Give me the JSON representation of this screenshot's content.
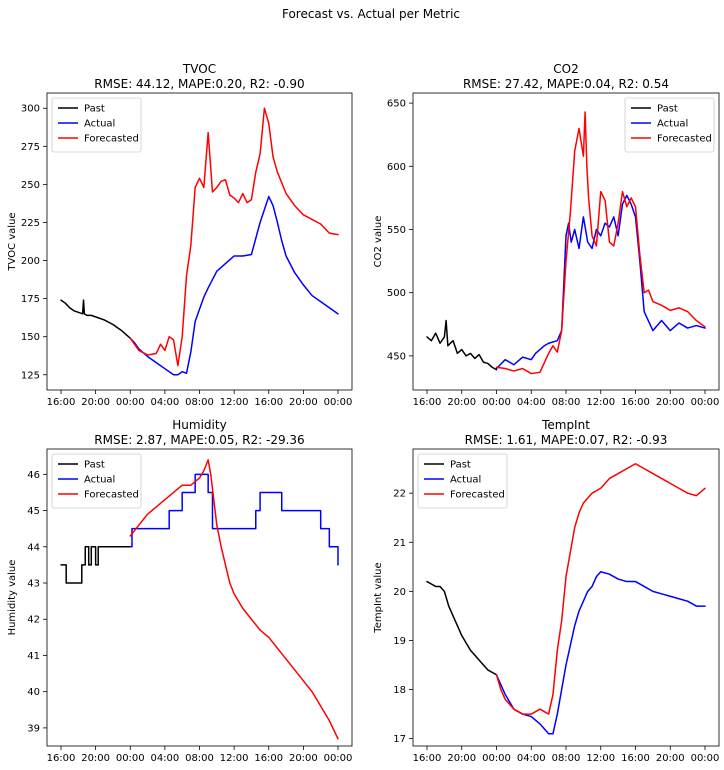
{
  "figure": {
    "suptitle": "Forecast vs. Actual per Metric"
  },
  "colors": {
    "past": "#000000",
    "actual": "#0000ff",
    "forecasted": "#ff0000"
  },
  "chart_data": [
    {
      "type": "line",
      "title": "TVOC",
      "subtitle": "RMSE: 44.12, MAPE:0.20, R2: -0.90",
      "ylabel": "TVOC value",
      "xlabel": "",
      "xlim": [
        0,
        32
      ],
      "ylim": [
        115,
        310
      ],
      "x_ticks": [
        0,
        4,
        8,
        12,
        16,
        20,
        24,
        28,
        32
      ],
      "x_tick_labels": [
        "16:00",
        "20:00",
        "00:00",
        "04:00",
        "08:00",
        "12:00",
        "16:00",
        "20:00",
        "00:00"
      ],
      "y_ticks": [
        125,
        150,
        175,
        200,
        225,
        250,
        275,
        300
      ],
      "y_tick_labels": [
        "125",
        "150",
        "175",
        "200",
        "225",
        "250",
        "275",
        "300"
      ],
      "legend": {
        "position": "top-left",
        "entries": [
          "Past",
          "Actual",
          "Forecasted"
        ]
      },
      "series": [
        {
          "name": "Past",
          "color": "#000000",
          "x": [
            0,
            0.5,
            1,
            1.5,
            2,
            2.5,
            2.6,
            2.7,
            3,
            3.5,
            4,
            5,
            6,
            7,
            8
          ],
          "y": [
            174,
            172,
            169,
            167,
            166,
            165,
            174,
            165,
            164,
            164,
            163,
            161,
            158,
            154,
            149
          ]
        },
        {
          "name": "Actual",
          "color": "#0000ff",
          "x": [
            8,
            8.5,
            9,
            10,
            11,
            12,
            13,
            13.5,
            14,
            14.5,
            15,
            15.5,
            16,
            16.5,
            17,
            18,
            19,
            20,
            21,
            22,
            23,
            24,
            24.5,
            25,
            25.5,
            26,
            27,
            28,
            29,
            30,
            31,
            32
          ],
          "y": [
            149,
            146,
            142,
            137,
            133,
            129,
            125,
            125,
            127,
            126,
            140,
            160,
            168,
            176,
            182,
            193,
            198,
            203,
            203,
            204,
            225,
            242,
            236,
            225,
            213,
            203,
            192,
            184,
            177,
            173,
            169,
            165
          ]
        },
        {
          "name": "Forecasted",
          "color": "#ff0000",
          "x": [
            8,
            8.5,
            9,
            10,
            11,
            11.5,
            12,
            12.5,
            13,
            13.5,
            14,
            14.5,
            15,
            15.5,
            16,
            16.5,
            17,
            17.5,
            18,
            18.5,
            19,
            19.5,
            20,
            20.5,
            21,
            21.5,
            22,
            22.5,
            23,
            23.5,
            24,
            24.5,
            25,
            26,
            27,
            28,
            29,
            30,
            31,
            32
          ],
          "y": [
            149,
            145,
            141,
            138,
            139,
            145,
            141,
            150,
            148,
            131,
            150,
            190,
            210,
            248,
            254,
            248,
            284,
            245,
            248,
            252,
            253,
            243,
            241,
            238,
            244,
            238,
            240,
            258,
            270,
            300,
            290,
            268,
            258,
            244,
            236,
            230,
            227,
            224,
            218,
            217
          ]
        }
      ]
    },
    {
      "type": "line",
      "title": "CO2",
      "subtitle": "RMSE: 27.42, MAPE:0.04, R2: 0.54",
      "ylabel": "CO2 value",
      "xlabel": "",
      "xlim": [
        0,
        32
      ],
      "ylim": [
        423,
        658
      ],
      "x_ticks": [
        0,
        4,
        8,
        12,
        16,
        20,
        24,
        28,
        32
      ],
      "x_tick_labels": [
        "16:00",
        "20:00",
        "00:00",
        "04:00",
        "08:00",
        "12:00",
        "16:00",
        "20:00",
        "00:00"
      ],
      "y_ticks": [
        450,
        500,
        550,
        600,
        650
      ],
      "y_tick_labels": [
        "450",
        "500",
        "550",
        "600",
        "650"
      ],
      "legend": {
        "position": "top-right",
        "entries": [
          "Past",
          "Actual",
          "Forecasted"
        ]
      },
      "series": [
        {
          "name": "Past",
          "color": "#000000",
          "x": [
            0,
            0.5,
            1,
            1.5,
            2,
            2.2,
            2.4,
            3,
            3.5,
            4,
            4.5,
            5,
            5.5,
            6,
            6.5,
            7,
            7.5,
            8
          ],
          "y": [
            465,
            462,
            468,
            460,
            465,
            478,
            458,
            462,
            452,
            455,
            450,
            452,
            448,
            451,
            445,
            444,
            441,
            439
          ]
        },
        {
          "name": "Actual",
          "color": "#0000ff",
          "x": [
            8,
            9,
            10,
            11,
            12,
            12.5,
            13,
            13.5,
            14,
            15,
            15.5,
            16,
            16.3,
            16.6,
            17,
            17.5,
            18,
            18.5,
            19,
            19.5,
            20,
            20.5,
            21,
            21.5,
            22,
            22.5,
            23,
            23.5,
            24,
            24.5,
            25,
            26,
            27,
            28,
            29,
            30,
            31,
            32
          ],
          "y": [
            440,
            447,
            443,
            449,
            447,
            452,
            455,
            458,
            460,
            462,
            470,
            545,
            555,
            540,
            550,
            535,
            560,
            540,
            535,
            550,
            545,
            555,
            552,
            560,
            545,
            570,
            577,
            570,
            560,
            525,
            485,
            470,
            478,
            470,
            476,
            472,
            474,
            472
          ]
        },
        {
          "name": "Forecasted",
          "color": "#ff0000",
          "x": [
            8,
            9,
            10,
            11,
            12,
            13,
            14,
            14.5,
            15,
            15.5,
            16,
            16.5,
            17,
            17.5,
            18,
            18.2,
            18.4,
            18.6,
            19,
            19.5,
            20,
            20.5,
            21,
            21.5,
            22,
            22.5,
            23,
            23.5,
            24,
            24.5,
            25,
            25.5,
            26,
            27,
            28,
            29,
            30,
            31,
            32
          ],
          "y": [
            441,
            440,
            438,
            440,
            436,
            437,
            452,
            458,
            453,
            470,
            525,
            563,
            612,
            630,
            608,
            643,
            600,
            575,
            545,
            537,
            580,
            573,
            540,
            537,
            555,
            580,
            568,
            575,
            568,
            530,
            500,
            502,
            493,
            490,
            486,
            488,
            485,
            478,
            473
          ]
        }
      ]
    },
    {
      "type": "line",
      "title": "Humidity",
      "subtitle": "RMSE: 2.87, MAPE:0.05, R2: -29.36",
      "ylabel": "Humidity value",
      "xlabel": "",
      "xlim": [
        0,
        32
      ],
      "ylim": [
        38.5,
        46.7
      ],
      "x_ticks": [
        0,
        4,
        8,
        12,
        16,
        20,
        24,
        28,
        32
      ],
      "x_tick_labels": [
        "16:00",
        "20:00",
        "00:00",
        "04:00",
        "08:00",
        "12:00",
        "16:00",
        "20:00",
        "00:00"
      ],
      "y_ticks": [
        39,
        40,
        41,
        42,
        43,
        44,
        45,
        46
      ],
      "y_tick_labels": [
        "39",
        "40",
        "41",
        "42",
        "43",
        "44",
        "45",
        "46"
      ],
      "legend": {
        "position": "top-left",
        "entries": [
          "Past",
          "Actual",
          "Forecasted"
        ]
      },
      "series": [
        {
          "name": "Past",
          "color": "#000000",
          "x": [
            0,
            0.6,
            0.6,
            2.4,
            2.4,
            2.8,
            2.8,
            3.2,
            3.2,
            3.5,
            3.5,
            4,
            4,
            4.3,
            4.3,
            8
          ],
          "y": [
            43.5,
            43.5,
            43.0,
            43.0,
            43.5,
            43.5,
            44.0,
            44.0,
            43.5,
            43.5,
            44.0,
            44.0,
            43.5,
            43.5,
            44.0,
            44.0
          ]
        },
        {
          "name": "Actual",
          "color": "#0000ff",
          "x": [
            8,
            8.2,
            8.2,
            8.5,
            8.5,
            12.5,
            12.5,
            14,
            14,
            15.5,
            15.5,
            17,
            17,
            17.5,
            17.5,
            22.5,
            22.5,
            23,
            23,
            24,
            24,
            25.5,
            25.5,
            26,
            26,
            27,
            27,
            30,
            30,
            31,
            31,
            32,
            32
          ],
          "y": [
            44.0,
            44.0,
            44.5,
            44.5,
            44.5,
            44.5,
            45.0,
            45.0,
            45.5,
            45.5,
            46.0,
            46.0,
            45.5,
            45.5,
            44.5,
            44.5,
            45.0,
            45.0,
            45.5,
            45.5,
            45.5,
            45.5,
            45.0,
            45.0,
            45.0,
            45.0,
            45.0,
            45.0,
            44.5,
            44.5,
            44.0,
            44.0,
            43.5
          ]
        },
        {
          "name": "Forecasted",
          "color": "#ff0000",
          "x": [
            8,
            9,
            10,
            11,
            12,
            13,
            14,
            15,
            16,
            16.5,
            17,
            17.3,
            17.6,
            18,
            18.5,
            19,
            19.5,
            20,
            21,
            22,
            23,
            24,
            25,
            26,
            27,
            28,
            29,
            30,
            31,
            32
          ],
          "y": [
            44.3,
            44.6,
            44.9,
            45.1,
            45.3,
            45.5,
            45.7,
            45.7,
            45.9,
            46.1,
            46.4,
            46.0,
            45.4,
            44.6,
            44.0,
            43.5,
            43.0,
            42.7,
            42.3,
            42.0,
            41.7,
            41.5,
            41.2,
            40.9,
            40.6,
            40.3,
            40.0,
            39.6,
            39.2,
            38.7
          ]
        }
      ]
    },
    {
      "type": "line",
      "title": "TempInt",
      "subtitle": "RMSE: 1.61, MAPE:0.07, R2: -0.93",
      "ylabel": "TempInt value",
      "xlabel": "",
      "xlim": [
        0,
        32
      ],
      "ylim": [
        16.85,
        22.9
      ],
      "x_ticks": [
        0,
        4,
        8,
        12,
        16,
        20,
        24,
        28,
        32
      ],
      "x_tick_labels": [
        "16:00",
        "20:00",
        "00:00",
        "04:00",
        "08:00",
        "12:00",
        "16:00",
        "20:00",
        "00:00"
      ],
      "y_ticks": [
        17,
        18,
        19,
        20,
        21,
        22
      ],
      "y_tick_labels": [
        "17",
        "18",
        "19",
        "20",
        "21",
        "22"
      ],
      "legend": {
        "position": "top-left",
        "entries": [
          "Past",
          "Actual",
          "Forecasted"
        ]
      },
      "series": [
        {
          "name": "Past",
          "color": "#000000",
          "x": [
            0,
            0.5,
            1,
            1.5,
            2,
            2.5,
            3,
            3.5,
            4,
            4.5,
            5,
            5.5,
            6,
            6.5,
            7,
            7.5,
            8
          ],
          "y": [
            20.2,
            20.15,
            20.1,
            20.1,
            20.0,
            19.7,
            19.5,
            19.3,
            19.1,
            18.95,
            18.8,
            18.7,
            18.6,
            18.5,
            18.4,
            18.35,
            18.3
          ]
        },
        {
          "name": "Actual",
          "color": "#0000ff",
          "x": [
            8,
            8.5,
            9,
            10,
            11,
            12,
            13,
            14,
            14.5,
            15,
            15.5,
            16,
            16.5,
            17,
            17.5,
            18,
            18.5,
            19,
            19.5,
            20,
            21,
            22,
            23,
            24,
            25,
            26,
            27,
            28,
            29,
            30,
            31,
            32
          ],
          "y": [
            18.3,
            18.1,
            17.9,
            17.6,
            17.5,
            17.45,
            17.3,
            17.1,
            17.1,
            17.5,
            18.0,
            18.5,
            18.9,
            19.3,
            19.6,
            19.8,
            20.0,
            20.1,
            20.3,
            20.4,
            20.35,
            20.25,
            20.2,
            20.2,
            20.1,
            20.0,
            19.95,
            19.9,
            19.85,
            19.8,
            19.7,
            19.7
          ]
        },
        {
          "name": "Forecasted",
          "color": "#ff0000",
          "x": [
            8,
            8.5,
            9,
            10,
            11,
            12,
            13,
            14,
            14.5,
            15,
            15.5,
            16,
            16.5,
            17,
            17.5,
            18,
            18.5,
            19,
            20,
            21,
            22,
            23,
            24,
            25,
            26,
            27,
            28,
            29,
            30,
            31,
            32
          ],
          "y": [
            18.3,
            18.0,
            17.8,
            17.6,
            17.5,
            17.5,
            17.6,
            17.5,
            17.9,
            18.8,
            19.4,
            20.3,
            20.8,
            21.3,
            21.6,
            21.8,
            21.9,
            22.0,
            22.1,
            22.3,
            22.4,
            22.5,
            22.6,
            22.5,
            22.4,
            22.3,
            22.2,
            22.1,
            22.0,
            21.95,
            22.1
          ]
        }
      ]
    }
  ]
}
